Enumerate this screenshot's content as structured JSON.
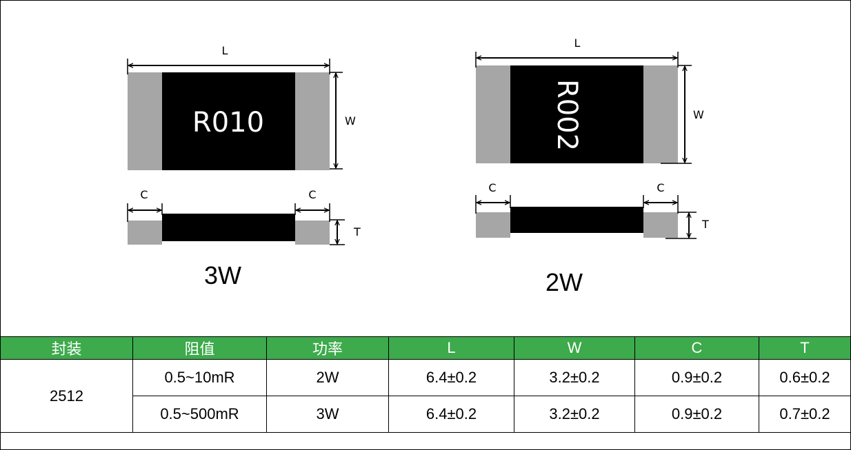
{
  "diagram": {
    "left_part": {
      "marking": "R010",
      "caption": "3W"
    },
    "right_part": {
      "marking": "R002",
      "caption": "2W"
    },
    "dimension_labels": {
      "length": "L",
      "width": "W",
      "cap": "C",
      "thickness": "T"
    },
    "colors": {
      "body": "#000000",
      "terminal": "#a6a6a6",
      "header_bg": "#3daa4c"
    }
  },
  "table": {
    "headers": [
      "封装",
      "阻值",
      "功率",
      "L",
      "W",
      "C",
      "T"
    ],
    "package": "2512",
    "rows": [
      {
        "resistance": "0.5~10mR",
        "power": "2W",
        "L": "6.4±0.2",
        "W": "3.2±0.2",
        "C": "0.9±0.2",
        "T": "0.6±0.2"
      },
      {
        "resistance": "0.5~500mR",
        "power": "3W",
        "L": "6.4±0.2",
        "W": "3.2±0.2",
        "C": "0.9±0.2",
        "T": "0.7±0.2"
      }
    ]
  }
}
